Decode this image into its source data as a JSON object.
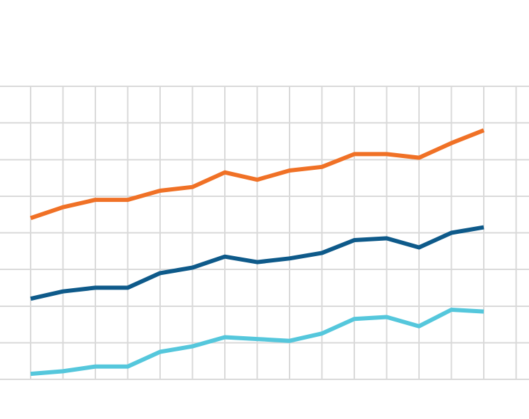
{
  "chart_data": {
    "type": "line",
    "title": "",
    "xlabel": "",
    "ylabel": "",
    "grid": true,
    "legend": "none",
    "x": [
      1,
      2,
      3,
      4,
      5,
      6,
      7,
      8,
      9,
      10,
      11,
      12,
      13,
      14,
      15
    ],
    "xlim": [
      0,
      16
    ],
    "ylim": [
      0,
      8
    ],
    "series": [
      {
        "color": "#f07126",
        "values": [
          4.4,
          4.7,
          4.9,
          4.9,
          5.15,
          5.25,
          5.65,
          5.45,
          5.7,
          5.8,
          6.15,
          6.15,
          6.05,
          6.45,
          6.8
        ]
      },
      {
        "color": "#0e5a8a",
        "values": [
          2.2,
          2.4,
          2.5,
          2.5,
          2.9,
          3.05,
          3.35,
          3.2,
          3.3,
          3.45,
          3.8,
          3.85,
          3.6,
          4.0,
          4.15
        ]
      },
      {
        "color": "#55c7dc",
        "values": [
          0.15,
          0.22,
          0.35,
          0.35,
          0.75,
          0.9,
          1.15,
          1.1,
          1.05,
          1.25,
          1.65,
          1.7,
          1.45,
          1.9,
          1.85
        ]
      }
    ]
  }
}
